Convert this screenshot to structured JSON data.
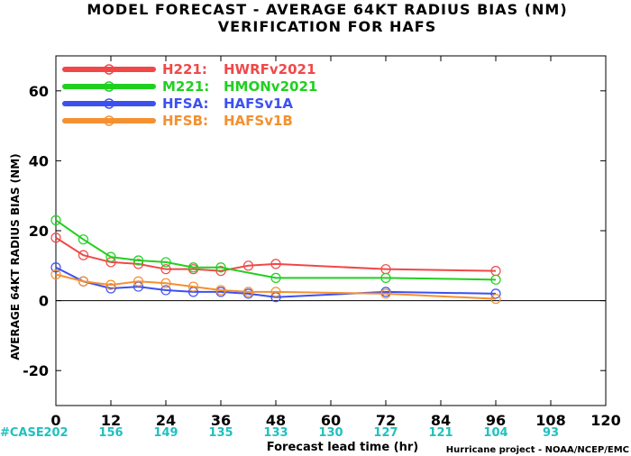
{
  "chart_data": {
    "type": "line",
    "title": "MODEL FORECAST - AVERAGE 64KT RADIUS BIAS (NM)",
    "subtitle": "VERIFICATION FOR HAFS",
    "xlabel": "Forecast lead time (hr)",
    "ylabel": "AVERAGE 64KT RADIUS BIAS (NM)",
    "xlim": [
      0,
      120
    ],
    "ylim": [
      -30,
      70
    ],
    "xticks": [
      0,
      12,
      24,
      36,
      48,
      60,
      72,
      84,
      96,
      108,
      120
    ],
    "yticks": [
      -20,
      0,
      20,
      40,
      60
    ],
    "grid": false,
    "zero_line": true,
    "legend_position": "top-left",
    "case_label": "#CASE",
    "cases": [
      {
        "x": 0,
        "n": "202"
      },
      {
        "x": 12,
        "n": "156"
      },
      {
        "x": 24,
        "n": "149"
      },
      {
        "x": 36,
        "n": "135"
      },
      {
        "x": 48,
        "n": "133"
      },
      {
        "x": 60,
        "n": "130"
      },
      {
        "x": 72,
        "n": "127"
      },
      {
        "x": 84,
        "n": "121"
      },
      {
        "x": 96,
        "n": "104"
      },
      {
        "x": 108,
        "n": "93"
      }
    ],
    "credit": "Hurricane project - NOAA/NCEP/EMC",
    "series": [
      {
        "name": "H221:",
        "desc": "HWRFv2021",
        "color": "#f04848",
        "x": [
          0,
          6,
          12,
          18,
          24,
          30,
          36,
          42,
          48,
          72,
          96
        ],
        "y": [
          18,
          13,
          11,
          10.5,
          9,
          9,
          8.5,
          10,
          10.5,
          9,
          8.5
        ]
      },
      {
        "name": "M221:",
        "desc": "HMONv2021",
        "color": "#20d020",
        "x": [
          0,
          6,
          12,
          18,
          24,
          30,
          36,
          48,
          72,
          96
        ],
        "y": [
          23,
          17.5,
          12.5,
          11.5,
          11,
          9.5,
          9.5,
          6.5,
          6.5,
          6
        ]
      },
      {
        "name": "HFSA:",
        "desc": "HAFSv1A",
        "color": "#3c50f0",
        "x": [
          0,
          6,
          12,
          18,
          24,
          30,
          36,
          42,
          48,
          72,
          96
        ],
        "y": [
          9.5,
          5.5,
          3.5,
          4,
          3,
          2.5,
          2.5,
          2,
          1,
          2.5,
          2
        ]
      },
      {
        "name": "HFSB:",
        "desc": "HAFSv1B",
        "color": "#f49030",
        "x": [
          0,
          6,
          12,
          18,
          24,
          30,
          36,
          42,
          48,
          72,
          96
        ],
        "y": [
          7.5,
          5.5,
          4.5,
          5.5,
          5,
          4,
          3,
          2.5,
          2.5,
          2,
          0.5
        ]
      }
    ]
  }
}
